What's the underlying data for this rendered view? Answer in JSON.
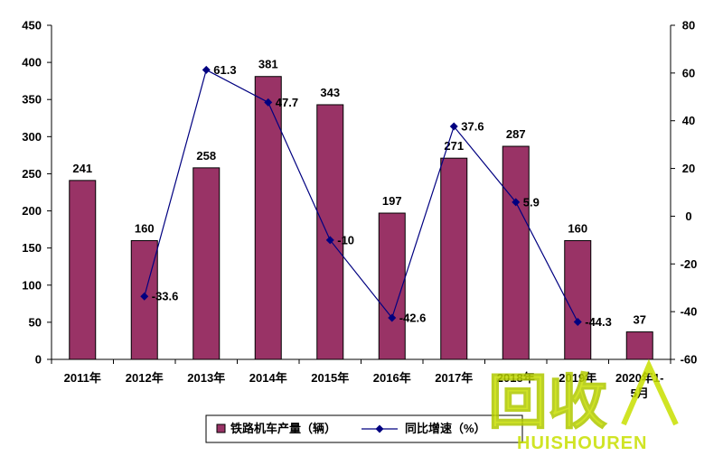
{
  "chart_data": {
    "type": "bar",
    "categories": [
      "2011年",
      "2012年",
      "2013年",
      "2014年",
      "2015年",
      "2016年",
      "2017年",
      "2018年",
      "2019年",
      "2020年1-5月"
    ],
    "series": [
      {
        "name": "铁路机车产量（辆）",
        "type": "bar",
        "axis": "left",
        "values": [
          241,
          160,
          258,
          381,
          343,
          197,
          271,
          287,
          160,
          37
        ],
        "labels": [
          "241",
          "160",
          "258",
          "381",
          "343",
          "197",
          "271",
          "287",
          "160",
          "37"
        ],
        "color": "#993366"
      },
      {
        "name": "同比增速（%）",
        "type": "line",
        "axis": "right",
        "values": [
          null,
          -33.6,
          61.3,
          47.7,
          -10,
          -42.6,
          37.6,
          5.9,
          -44.3,
          null
        ],
        "labels": [
          "",
          "-33.6",
          "61.3",
          "47.7",
          "-10",
          "-42.6",
          "37.6",
          "5.9",
          "-44.3",
          ""
        ],
        "color": "#000080"
      }
    ],
    "y_left": {
      "min": 0,
      "max": 450,
      "step": 50,
      "ticks": [
        "0",
        "50",
        "100",
        "150",
        "200",
        "250",
        "300",
        "350",
        "400",
        "450"
      ]
    },
    "y_right": {
      "min": -60,
      "max": 80,
      "step": 20,
      "ticks": [
        "-60",
        "-40",
        "-20",
        "0",
        "20",
        "40",
        "60",
        "80"
      ]
    },
    "grid": false,
    "legend_position": "bottom",
    "title": "",
    "xlabel": "",
    "ylabel": ""
  },
  "watermark": {
    "text_main": "回收",
    "text_sub": "HUISHOUREN",
    "color": "#c8e000"
  }
}
